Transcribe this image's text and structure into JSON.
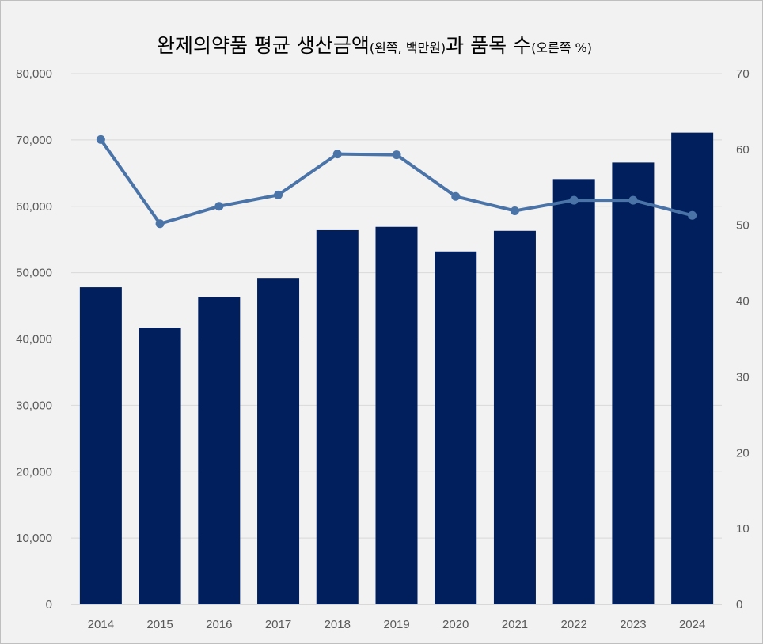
{
  "chart_data": {
    "type": "bar+line",
    "title_main": "완제의약품 평균 생산금액",
    "title_left_note": "(왼쪽, 백만원)",
    "title_mid": "과 품목 수",
    "title_right_note": "(오른쪽 %)",
    "categories": [
      "2014",
      "2015",
      "2016",
      "2017",
      "2018",
      "2019",
      "2020",
      "2021",
      "2022",
      "2023",
      "2024"
    ],
    "series": [
      {
        "type": "bar",
        "axis": "left",
        "color": "#001f5c",
        "values": [
          47800,
          41700,
          46300,
          49100,
          56400,
          56900,
          53200,
          56300,
          64100,
          66600,
          71100
        ]
      },
      {
        "type": "line",
        "axis": "right",
        "color": "#4a74a8",
        "values": [
          61.3,
          50.2,
          52.5,
          54.0,
          59.4,
          59.3,
          53.8,
          51.9,
          53.3,
          53.3,
          51.3
        ]
      }
    ],
    "left_axis": {
      "min": 0,
      "max": 80000,
      "step": 10000,
      "tick_labels": [
        "0",
        "10,000",
        "20,000",
        "30,000",
        "40,000",
        "50,000",
        "60,000",
        "70,000",
        "80,000"
      ]
    },
    "right_axis": {
      "min": 0,
      "max": 70,
      "step": 10,
      "tick_labels": [
        "0",
        "10",
        "20",
        "30",
        "40",
        "50",
        "60",
        "70"
      ]
    },
    "grid": true,
    "legend": "none"
  }
}
